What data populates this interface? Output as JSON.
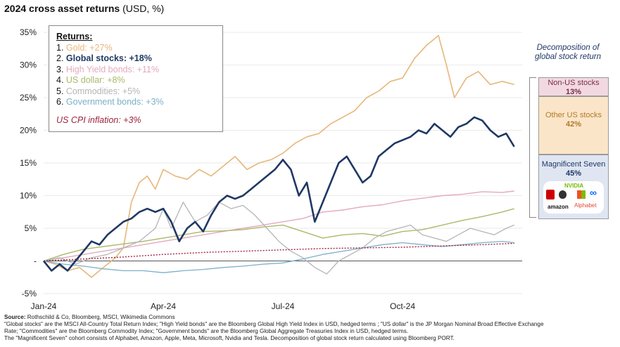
{
  "title_bold": "2024 cross asset returns",
  "title_rest": " (USD, %)",
  "legend": {
    "heading": "Returns:",
    "items": [
      {
        "num": "1.",
        "label": "Gold: +27%",
        "color": "#E6B77A"
      },
      {
        "num": "2.",
        "label": "Global stocks: +18%",
        "color": "#1F3864"
      },
      {
        "num": "3.",
        "label": "High Yield bonds: +11%",
        "color": "#E4A9BD"
      },
      {
        "num": "4.",
        "label": "US dollar: +8%",
        "color": "#A9B96A"
      },
      {
        "num": "5.",
        "label": "Commodities: +5%",
        "color": "#B5B5B5"
      },
      {
        "num": "6.",
        "label": "Government bonds: +3%",
        "color": "#7BAFC9"
      }
    ],
    "cpi": "US CPI inflation: +3%",
    "cpi_color": "#A0233F"
  },
  "decomposition": {
    "title": "Decomposition of global stock return",
    "segments": [
      {
        "label": "Non-US stocks",
        "value": "13%"
      },
      {
        "label": "Other US stocks",
        "value": "42%"
      },
      {
        "label": "Magnificent Seven",
        "value": "45%"
      }
    ],
    "logos": {
      "nvidia": "NVIDIA",
      "amazon": "amazon",
      "alphabet": "Alphabet",
      "meta": "∞"
    }
  },
  "footer": {
    "source_label": "Source:",
    "source": " Rothschild & Co, Bloomberg, MSCI, Wikimedia Commons",
    "line2": "\"Global stocks\" are the MSCI All-Country Total Return Index; \"High Yield bonds\" are the Bloomberg Global High Yield Index in USD, hedged terms ; \"US dollar\" is the JP Morgan Nominal Broad Effective Exchange",
    "line3": "Rate; \"Commodities\" are the Bloomberg Commodity Index; \"Government bonds\" are the Bloomberg Global Aggregate Treasuries Index in USD, hedged terms.",
    "line4": "The \"Magnificent Seven\" cohort consists of Alphabet, Amazon, Apple, Meta, Microsoft, Nvidia and Tesla. Decomposition of global stock return calculated using Bloomberg PORT."
  },
  "chart_data": {
    "type": "line",
    "title": "2024 cross asset returns (USD, %)",
    "xlabel": "",
    "ylabel": "",
    "x_range": [
      0,
      12
    ],
    "ylim": [
      -5,
      35
    ],
    "yticks": [
      -5,
      0,
      5,
      10,
      15,
      20,
      25,
      30,
      35
    ],
    "ytick_labels": [
      "-5%",
      "-",
      "5%",
      "10%",
      "15%",
      "20%",
      "25%",
      "30%",
      "35%"
    ],
    "xticks": [
      0,
      3,
      6,
      9
    ],
    "xtick_labels": [
      "Jan-24",
      "Apr-24",
      "Jul-24",
      "Oct-24"
    ],
    "series": [
      {
        "name": "Gold",
        "color": "#E6B77A",
        "width": 1.6,
        "x": [
          0,
          0.3,
          0.6,
          0.9,
          1.2,
          1.5,
          1.8,
          2.0,
          2.2,
          2.4,
          2.6,
          2.8,
          3.0,
          3.3,
          3.6,
          3.9,
          4.2,
          4.5,
          4.8,
          5.1,
          5.4,
          5.7,
          6.0,
          6.3,
          6.6,
          6.9,
          7.2,
          7.5,
          7.8,
          8.1,
          8.4,
          8.7,
          9.0,
          9.3,
          9.6,
          9.9,
          10.1,
          10.3,
          10.6,
          10.9,
          11.2,
          11.5,
          11.8
        ],
        "y": [
          0,
          -0.5,
          -1.5,
          -1,
          -2.5,
          -1,
          0.5,
          2,
          9,
          12,
          13,
          11,
          14,
          13,
          12.5,
          14,
          13,
          14.5,
          16,
          14,
          15,
          15.5,
          16.5,
          18,
          19,
          19.5,
          21,
          22,
          23,
          25,
          26,
          27.5,
          28,
          31,
          33,
          34.5,
          30,
          25,
          28,
          29,
          27,
          27.5,
          27
        ]
      },
      {
        "name": "High Yield bonds",
        "color": "#E4A9BD",
        "width": 1.4,
        "x": [
          0,
          0.5,
          1,
          1.5,
          2,
          2.5,
          3,
          3.5,
          4,
          4.5,
          5,
          5.5,
          6,
          6.5,
          7,
          7.5,
          8,
          8.5,
          9,
          9.5,
          10,
          10.5,
          11,
          11.5,
          11.8
        ],
        "y": [
          0,
          0.5,
          1,
          1.5,
          2,
          2.5,
          3,
          3.5,
          4,
          4.5,
          5,
          5.5,
          6,
          6.5,
          7.5,
          7.8,
          8.3,
          8.6,
          9.2,
          9.6,
          10,
          10.2,
          10.6,
          10.5,
          10.7
        ]
      },
      {
        "name": "US dollar",
        "color": "#A9B96A",
        "width": 1.4,
        "x": [
          0,
          0.5,
          1,
          1.5,
          2,
          2.5,
          3,
          3.5,
          4,
          4.5,
          5,
          5.5,
          6,
          6.5,
          7,
          7.5,
          8,
          8.5,
          9,
          9.5,
          10,
          10.5,
          11,
          11.5,
          11.8
        ],
        "y": [
          0,
          1,
          1.8,
          2.2,
          2.6,
          3,
          3.5,
          4,
          4.5,
          4.6,
          4.8,
          5.2,
          5.5,
          4.5,
          3.5,
          4,
          4.2,
          3.8,
          4.5,
          4.8,
          5.5,
          6.2,
          6.8,
          7.5,
          8
        ]
      },
      {
        "name": "Commodities",
        "color": "#B5B5B5",
        "width": 1.3,
        "x": [
          0,
          0.4,
          0.8,
          1.2,
          1.6,
          2.0,
          2.4,
          2.8,
          3.0,
          3.2,
          3.5,
          3.8,
          4.1,
          4.4,
          4.7,
          5.0,
          5.3,
          5.6,
          5.9,
          6.2,
          6.5,
          6.8,
          7.1,
          7.4,
          7.7,
          8.0,
          8.3,
          8.6,
          8.9,
          9.2,
          9.5,
          9.8,
          10.1,
          10.4,
          10.7,
          11.0,
          11.3,
          11.6,
          11.8
        ],
        "y": [
          0,
          0.5,
          -0.5,
          0.5,
          1,
          2,
          3,
          5,
          8,
          5,
          9,
          6,
          7,
          9,
          8,
          8.5,
          7,
          5,
          3,
          1.5,
          0.5,
          -1,
          -2,
          0,
          1,
          2,
          3.5,
          4.5,
          5,
          5.5,
          4,
          3.5,
          3,
          4,
          5,
          4.5,
          4,
          5,
          5.5
        ]
      },
      {
        "name": "Government bonds",
        "color": "#7BAFC9",
        "width": 1.3,
        "x": [
          0,
          0.5,
          1,
          1.5,
          2,
          2.5,
          3,
          3.5,
          4,
          4.5,
          5,
          5.5,
          6,
          6.5,
          7,
          7.5,
          8,
          8.5,
          9,
          9.5,
          10,
          10.5,
          11,
          11.5,
          11.8
        ],
        "y": [
          0,
          -0.5,
          -0.8,
          -1.2,
          -1.5,
          -1.5,
          -1.8,
          -1.5,
          -1.3,
          -1,
          -0.8,
          -0.5,
          -0.3,
          0.3,
          1,
          1.5,
          2,
          2.5,
          2.8,
          2.5,
          2.2,
          2.5,
          2.8,
          3,
          2.8
        ]
      },
      {
        "name": "US CPI inflation",
        "color": "#A0233F",
        "width": 1.4,
        "dash": "2,2",
        "x": [
          0,
          1,
          2,
          3,
          4,
          5,
          6,
          7,
          8,
          9,
          10,
          11,
          11.8
        ],
        "y": [
          0,
          0.3,
          0.6,
          1.0,
          1.3,
          1.5,
          1.7,
          1.9,
          2.0,
          2.1,
          2.3,
          2.5,
          2.7
        ]
      },
      {
        "name": "Global stocks",
        "color": "#1F3864",
        "width": 2.6,
        "x": [
          0,
          0.2,
          0.4,
          0.6,
          0.8,
          1.0,
          1.2,
          1.4,
          1.6,
          1.8,
          2.0,
          2.2,
          2.4,
          2.6,
          2.8,
          3.0,
          3.2,
          3.4,
          3.6,
          3.8,
          4.0,
          4.2,
          4.4,
          4.6,
          4.8,
          5.0,
          5.2,
          5.4,
          5.6,
          5.8,
          6.0,
          6.2,
          6.4,
          6.6,
          6.8,
          7.0,
          7.2,
          7.4,
          7.6,
          7.8,
          8.0,
          8.2,
          8.4,
          8.6,
          8.8,
          9.0,
          9.2,
          9.4,
          9.6,
          9.8,
          10.0,
          10.2,
          10.4,
          10.6,
          10.8,
          11.0,
          11.2,
          11.4,
          11.6,
          11.8
        ],
        "y": [
          0,
          -1.5,
          -0.5,
          -1.5,
          0,
          1.5,
          3,
          2.5,
          4,
          5,
          6,
          6.5,
          7.5,
          8,
          7.5,
          8,
          6,
          3,
          5,
          6,
          4.5,
          7,
          9,
          10,
          9.5,
          10,
          11,
          12,
          13,
          14,
          15.5,
          14,
          10,
          12,
          6,
          9,
          12,
          15,
          16,
          14,
          12,
          13,
          16,
          17,
          18,
          18.5,
          19,
          20,
          19.5,
          21,
          20,
          19,
          20.5,
          21,
          22,
          21.5,
          20,
          19,
          19.5,
          17.5
        ]
      }
    ]
  }
}
